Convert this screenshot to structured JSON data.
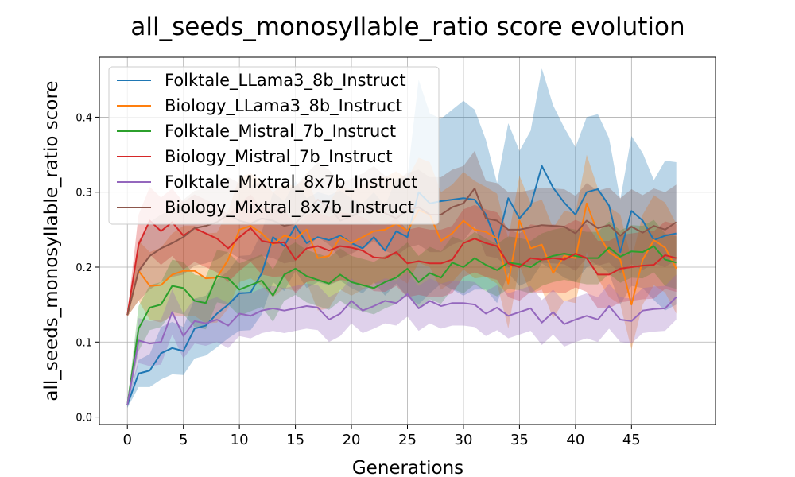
{
  "chart_data": {
    "type": "line",
    "title": "all_seeds_monosyllable_ratio score evolution",
    "xlabel": "Generations",
    "ylabel": "all_seeds_monosyllable_ratio score",
    "xlim": [
      -2.5,
      52.5
    ],
    "ylim": [
      -0.01,
      0.48
    ],
    "xticks": [
      0,
      5,
      10,
      15,
      20,
      25,
      30,
      35,
      40,
      45
    ],
    "yticks": [
      0.0,
      0.1,
      0.2,
      0.3,
      0.4
    ],
    "xtick_labels": [
      "0",
      "5",
      "10",
      "15",
      "20",
      "25",
      "30",
      "35",
      "40",
      "45"
    ],
    "ytick_labels": [
      "0.0",
      "0.1",
      "0.2",
      "0.3",
      "0.4"
    ],
    "grid": true,
    "legend_position": "top-left",
    "shaded_band": true,
    "series": [
      {
        "name": "Folktale_LLama3_8b_Instruct",
        "color": "#1f77b4",
        "values": [
          0.016,
          0.058,
          0.062,
          0.085,
          0.092,
          0.088,
          0.118,
          0.122,
          0.138,
          0.15,
          0.165,
          0.166,
          0.192,
          0.24,
          0.228,
          0.255,
          0.232,
          0.24,
          0.236,
          0.242,
          0.232,
          0.225,
          0.24,
          0.222,
          0.248,
          0.24,
          0.3,
          0.285,
          0.288,
          0.29,
          0.292,
          0.29,
          0.27,
          0.232,
          0.292,
          0.265,
          0.282,
          0.335,
          0.306,
          0.286,
          0.27,
          0.3,
          0.304,
          0.282,
          0.22,
          0.275,
          0.262,
          0.236,
          0.242,
          0.245
        ],
        "band": [
          0.004,
          0.018,
          0.022,
          0.035,
          0.035,
          0.032,
          0.04,
          0.04,
          0.045,
          0.045,
          0.05,
          0.05,
          0.055,
          0.06,
          0.06,
          0.06,
          0.06,
          0.06,
          0.06,
          0.06,
          0.06,
          0.06,
          0.06,
          0.06,
          0.07,
          0.08,
          0.15,
          0.12,
          0.11,
          0.12,
          0.13,
          0.12,
          0.1,
          0.08,
          0.1,
          0.09,
          0.1,
          0.13,
          0.11,
          0.1,
          0.09,
          0.1,
          0.1,
          0.09,
          0.07,
          0.1,
          0.09,
          0.08,
          0.1,
          0.095
        ]
      },
      {
        "name": "Biology_LLama3_8b_Instruct",
        "color": "#ff7f0e",
        "values": [
          0.136,
          0.195,
          0.175,
          0.176,
          0.19,
          0.195,
          0.195,
          0.185,
          0.186,
          0.21,
          0.25,
          0.255,
          0.245,
          0.23,
          0.242,
          0.238,
          0.25,
          0.212,
          0.215,
          0.24,
          0.232,
          0.24,
          0.248,
          0.25,
          0.258,
          0.248,
          0.276,
          0.27,
          0.235,
          0.245,
          0.262,
          0.25,
          0.247,
          0.238,
          0.178,
          0.262,
          0.225,
          0.23,
          0.192,
          0.215,
          0.212,
          0.285,
          0.245,
          0.22,
          0.21,
          0.15,
          0.21,
          0.236,
          0.226,
          0.198
        ],
        "band": [
          0.002,
          0.04,
          0.045,
          0.05,
          0.055,
          0.06,
          0.06,
          0.06,
          0.06,
          0.065,
          0.07,
          0.07,
          0.07,
          0.07,
          0.07,
          0.07,
          0.07,
          0.07,
          0.07,
          0.07,
          0.07,
          0.07,
          0.07,
          0.07,
          0.07,
          0.07,
          0.07,
          0.07,
          0.065,
          0.065,
          0.065,
          0.065,
          0.06,
          0.06,
          0.06,
          0.06,
          0.06,
          0.06,
          0.06,
          0.06,
          0.06,
          0.065,
          0.06,
          0.06,
          0.06,
          0.06,
          0.06,
          0.06,
          0.06,
          0.06
        ]
      },
      {
        "name": "Folktale_Mistral_7b_Instruct",
        "color": "#2ca02c",
        "values": [
          0.016,
          0.118,
          0.146,
          0.15,
          0.175,
          0.172,
          0.155,
          0.152,
          0.188,
          0.185,
          0.17,
          0.176,
          0.182,
          0.162,
          0.19,
          0.198,
          0.188,
          0.183,
          0.178,
          0.19,
          0.18,
          0.176,
          0.172,
          0.18,
          0.186,
          0.198,
          0.18,
          0.192,
          0.186,
          0.206,
          0.2,
          0.212,
          0.203,
          0.196,
          0.206,
          0.204,
          0.2,
          0.21,
          0.215,
          0.218,
          0.215,
          0.212,
          0.212,
          0.226,
          0.214,
          0.221,
          0.22,
          0.228,
          0.21,
          0.206
        ],
        "band": [
          0.004,
          0.03,
          0.03,
          0.03,
          0.035,
          0.035,
          0.035,
          0.035,
          0.035,
          0.035,
          0.035,
          0.035,
          0.035,
          0.035,
          0.035,
          0.035,
          0.035,
          0.035,
          0.035,
          0.035,
          0.035,
          0.035,
          0.035,
          0.035,
          0.035,
          0.035,
          0.035,
          0.035,
          0.035,
          0.035,
          0.035,
          0.035,
          0.035,
          0.035,
          0.035,
          0.035,
          0.035,
          0.035,
          0.035,
          0.035,
          0.035,
          0.035,
          0.035,
          0.035,
          0.035,
          0.035,
          0.035,
          0.035,
          0.035,
          0.035
        ]
      },
      {
        "name": "Biology_Mistral_7b_Instruct",
        "color": "#d62728",
        "values": [
          0.136,
          0.23,
          0.262,
          0.248,
          0.26,
          0.242,
          0.252,
          0.245,
          0.238,
          0.225,
          0.24,
          0.252,
          0.235,
          0.232,
          0.233,
          0.21,
          0.225,
          0.228,
          0.222,
          0.228,
          0.226,
          0.222,
          0.213,
          0.212,
          0.22,
          0.205,
          0.208,
          0.205,
          0.205,
          0.21,
          0.232,
          0.238,
          0.232,
          0.228,
          0.205,
          0.2,
          0.212,
          0.21,
          0.212,
          0.21,
          0.218,
          0.212,
          0.19,
          0.19,
          0.198,
          0.2,
          0.202,
          0.203,
          0.216,
          0.212
        ],
        "band": [
          0.002,
          0.04,
          0.045,
          0.045,
          0.045,
          0.045,
          0.045,
          0.045,
          0.045,
          0.045,
          0.045,
          0.045,
          0.045,
          0.045,
          0.045,
          0.045,
          0.045,
          0.045,
          0.045,
          0.045,
          0.045,
          0.045,
          0.045,
          0.045,
          0.045,
          0.045,
          0.045,
          0.045,
          0.045,
          0.045,
          0.045,
          0.045,
          0.045,
          0.045,
          0.045,
          0.045,
          0.045,
          0.045,
          0.045,
          0.045,
          0.045,
          0.045,
          0.045,
          0.045,
          0.045,
          0.045,
          0.045,
          0.045,
          0.045,
          0.045
        ]
      },
      {
        "name": "Folktale_Mixtral_8x7b_Instruct",
        "color": "#9467bd",
        "values": [
          0.016,
          0.102,
          0.098,
          0.1,
          0.14,
          0.108,
          0.128,
          0.125,
          0.13,
          0.122,
          0.138,
          0.135,
          0.142,
          0.145,
          0.142,
          0.145,
          0.148,
          0.146,
          0.13,
          0.138,
          0.155,
          0.142,
          0.148,
          0.155,
          0.152,
          0.164,
          0.145,
          0.155,
          0.148,
          0.152,
          0.152,
          0.15,
          0.138,
          0.146,
          0.135,
          0.14,
          0.145,
          0.126,
          0.14,
          0.124,
          0.13,
          0.135,
          0.13,
          0.148,
          0.13,
          0.128,
          0.142,
          0.144,
          0.145,
          0.16
        ],
        "band": [
          0.004,
          0.03,
          0.03,
          0.03,
          0.03,
          0.03,
          0.03,
          0.03,
          0.03,
          0.03,
          0.03,
          0.03,
          0.03,
          0.03,
          0.03,
          0.03,
          0.03,
          0.03,
          0.03,
          0.03,
          0.03,
          0.03,
          0.03,
          0.03,
          0.03,
          0.03,
          0.03,
          0.03,
          0.03,
          0.03,
          0.03,
          0.03,
          0.03,
          0.03,
          0.03,
          0.03,
          0.03,
          0.03,
          0.03,
          0.03,
          0.03,
          0.03,
          0.03,
          0.03,
          0.03,
          0.03,
          0.03,
          0.03,
          0.03,
          0.03
        ]
      },
      {
        "name": "Biology_Mixtral_8x7b_Instruct",
        "color": "#8c564b",
        "values": [
          0.136,
          0.195,
          0.215,
          0.225,
          0.232,
          0.24,
          0.252,
          0.255,
          0.26,
          0.27,
          0.262,
          0.258,
          0.265,
          0.262,
          0.255,
          0.258,
          0.275,
          0.29,
          0.28,
          0.262,
          0.268,
          0.275,
          0.285,
          0.272,
          0.265,
          0.276,
          0.28,
          0.27,
          0.27,
          0.28,
          0.285,
          0.305,
          0.265,
          0.262,
          0.25,
          0.25,
          0.253,
          0.256,
          0.255,
          0.254,
          0.245,
          0.262,
          0.252,
          0.256,
          0.242,
          0.254,
          0.246,
          0.255,
          0.25,
          0.26
        ],
        "band": [
          0.002,
          0.04,
          0.045,
          0.045,
          0.045,
          0.05,
          0.05,
          0.05,
          0.05,
          0.05,
          0.05,
          0.05,
          0.05,
          0.05,
          0.05,
          0.05,
          0.05,
          0.05,
          0.05,
          0.05,
          0.05,
          0.05,
          0.05,
          0.05,
          0.05,
          0.05,
          0.05,
          0.05,
          0.05,
          0.05,
          0.05,
          0.05,
          0.05,
          0.05,
          0.05,
          0.05,
          0.05,
          0.05,
          0.05,
          0.05,
          0.05,
          0.05,
          0.05,
          0.05,
          0.05,
          0.05,
          0.05,
          0.05,
          0.05,
          0.05
        ]
      }
    ]
  }
}
